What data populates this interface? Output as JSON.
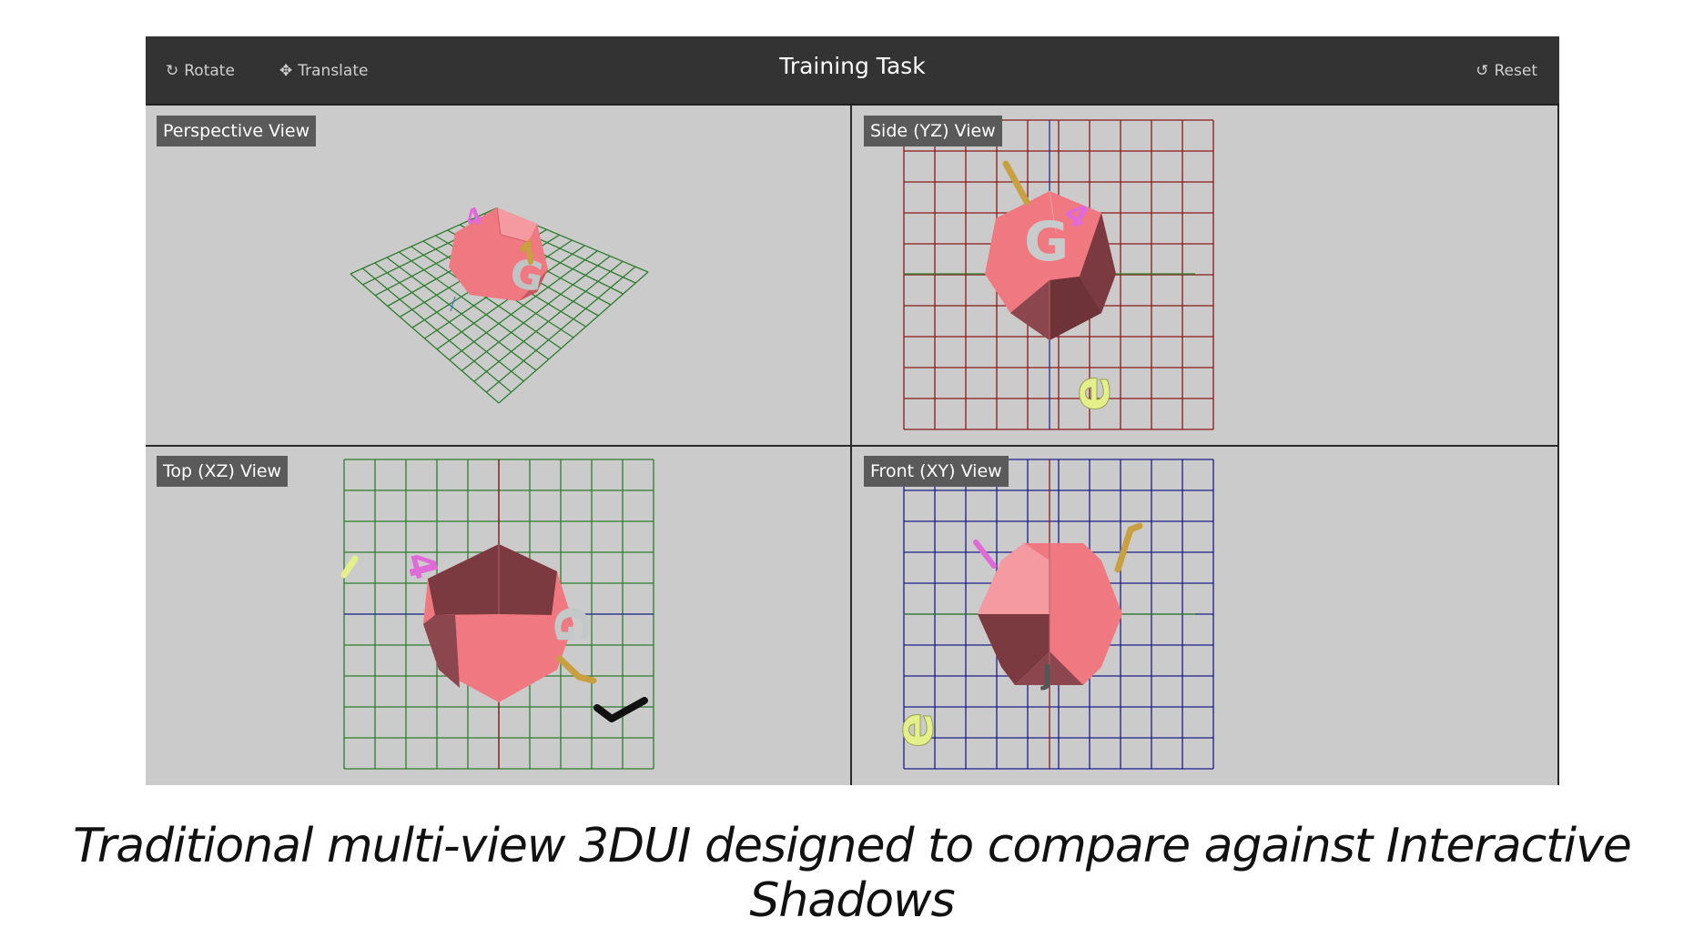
{
  "toolbar": {
    "rotate_label": "Rotate",
    "translate_label": "Translate",
    "title": "Training Task",
    "reset_label": "Reset"
  },
  "views": {
    "perspective": "Perspective View",
    "side": "Side (YZ) View",
    "top": "Top (XZ) View",
    "front": "Front (XY) View"
  },
  "letters": {
    "g": "G",
    "four": "4",
    "e": "e"
  },
  "caption": "Traditional multi-view 3DUI designed to compare against Interactive Shadows",
  "colors": {
    "toolbar_bg": "#333333",
    "viewport_bg": "#cbcbcb",
    "grid_perspective": "#2e7d2e",
    "grid_side": "#8b1a1a",
    "grid_top": "#2e7d2e",
    "grid_front": "#1c1c8a",
    "object": "#f07880",
    "object_dark": "#7a3a40",
    "letter_four": "#e06ad8",
    "letter_e": "#e4f08a",
    "stick": "#c9a040"
  },
  "icons": {
    "rotate": "refresh-icon",
    "translate": "move-arrows-icon",
    "reset": "undo-icon"
  }
}
